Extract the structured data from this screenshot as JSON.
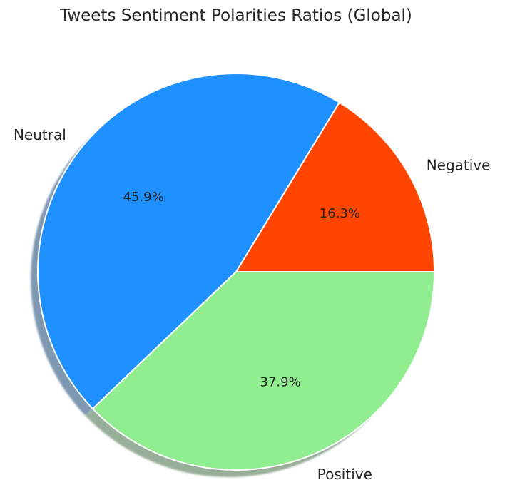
{
  "chart_data": {
    "type": "pie",
    "title": "Tweets Sentiment Polarities Ratios (Global)",
    "start_angle_degrees": 0,
    "direction": "counterclockwise",
    "shadow": true,
    "slices": [
      {
        "label": "Negative",
        "value": 16.3,
        "pct_label": "16.3%",
        "color": "#ff4500"
      },
      {
        "label": "Neutral",
        "value": 45.9,
        "pct_label": "45.9%",
        "color": "#1e90ff"
      },
      {
        "label": "Positive",
        "value": 37.9,
        "pct_label": "37.9%",
        "color": "#90ee90"
      }
    ]
  }
}
